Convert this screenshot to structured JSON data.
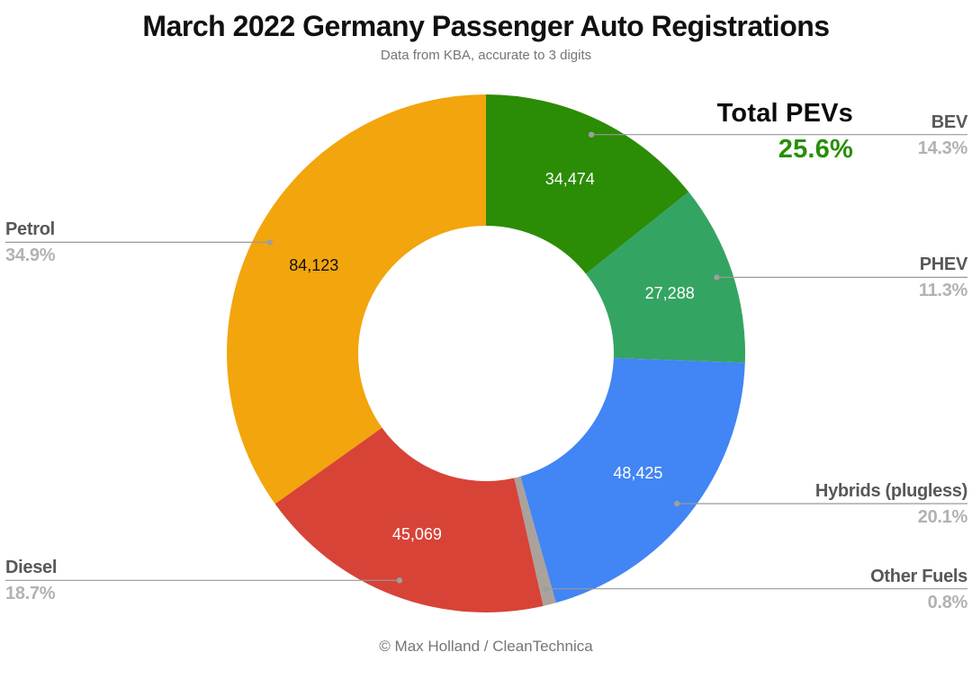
{
  "title": "March 2022 Germany Passenger Auto Registrations",
  "subtitle": "Data from KBA, accurate to 3 digits",
  "footer": "© Max Holland / CleanTechnica",
  "annotation": {
    "label": "Total PEVs",
    "value": "25.6%",
    "color": "#278E06"
  },
  "chart_data": {
    "type": "pie",
    "donut": true,
    "donut_hole_ratio": 0.49,
    "start_angle_deg": 0,
    "direction": "clockwise",
    "title": "March 2022 Germany Passenger Auto Registrations",
    "slices": [
      {
        "label": "BEV",
        "pct": 14.3,
        "pct_label": "14.3%",
        "value": 34474,
        "value_label": "34,474",
        "color": "#2B8C06",
        "value_text_color": "#ffffff",
        "callout_side": "right"
      },
      {
        "label": "PHEV",
        "pct": 11.3,
        "pct_label": "11.3%",
        "value": 27288,
        "value_label": "27,288",
        "color": "#34A463",
        "value_text_color": "#ffffff",
        "callout_side": "right"
      },
      {
        "label": "Hybrids (plugless)",
        "pct": 20.1,
        "pct_label": "20.1%",
        "value": 48425,
        "value_label": "48,425",
        "color": "#4285F4",
        "value_text_color": "#ffffff",
        "callout_side": "right"
      },
      {
        "label": "Other Fuels",
        "pct": 0.8,
        "pct_label": "0.8%",
        "value_label": "",
        "color": "#ABA29B",
        "value_text_color": "#ffffff",
        "callout_side": "right"
      },
      {
        "label": "Diesel",
        "pct": 18.7,
        "pct_label": "18.7%",
        "value": 45069,
        "value_label": "45,069",
        "color": "#D84338",
        "value_text_color": "#ffffff",
        "callout_side": "left"
      },
      {
        "label": "Petrol",
        "pct": 34.9,
        "pct_label": "34.9%",
        "value": 84123,
        "value_label": "84,123",
        "color": "#F2A50C",
        "value_text_color": "#111111",
        "callout_side": "left"
      }
    ]
  }
}
